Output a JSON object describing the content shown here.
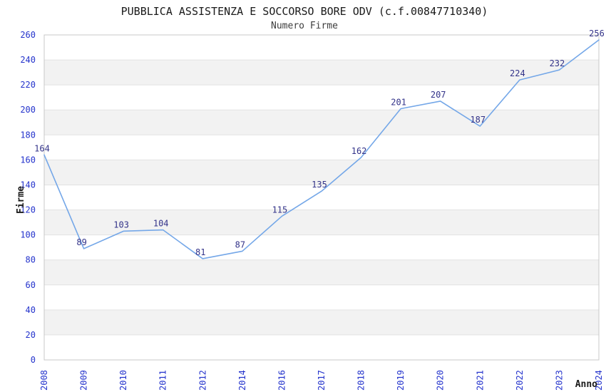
{
  "chart_data": {
    "type": "line",
    "title": "PUBBLICA ASSISTENZA E SOCCORSO BORE ODV (c.f.00847710340)",
    "subtitle": "Numero Firme",
    "xlabel": "Anno",
    "ylabel": "Firme",
    "categories": [
      "2008",
      "2009",
      "2010",
      "2011",
      "2012",
      "2014",
      "2016",
      "2017",
      "2018",
      "2019",
      "2020",
      "2021",
      "2022",
      "2023",
      "2024"
    ],
    "values": [
      164,
      89,
      103,
      104,
      81,
      87,
      115,
      135,
      162,
      201,
      207,
      187,
      224,
      232,
      256
    ],
    "ylim": [
      0,
      260
    ],
    "ytick_step": 20,
    "yticks": [
      0,
      20,
      40,
      60,
      80,
      100,
      120,
      140,
      160,
      180,
      200,
      220,
      240,
      260
    ],
    "grid": "alternating-horizontal-bands",
    "legend": "none",
    "colors": {
      "line": "#74a7e8",
      "tick_label": "#2433cc",
      "data_label": "#333389",
      "band": "#f2f2f2",
      "band_alt": "#ffffff",
      "gridline": "#e2e2e2",
      "border": "#c8c8c8",
      "background": "#ffffff"
    }
  }
}
